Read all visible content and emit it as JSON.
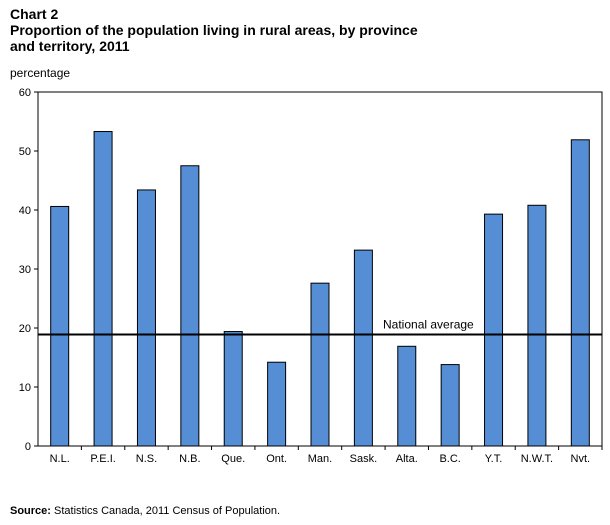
{
  "header": {
    "chart_number": "Chart 2",
    "title_line1": "Proportion of the population living in rural areas, by province",
    "title_line2": "and territory, 2011"
  },
  "footer": {
    "source_label": "Source:",
    "source_text": " Statistics Canada, 2011 Census of Population."
  },
  "colors": {
    "bar": "#558ED5",
    "bar_stroke": "#000000",
    "reference_line": "#000000"
  },
  "chart_data": {
    "type": "bar",
    "title": "Proportion of the population living in rural areas, by province and territory, 2011",
    "ylabel": "percentage",
    "ylim": [
      0,
      60
    ],
    "yticks": [
      0,
      10,
      20,
      30,
      40,
      50,
      60
    ],
    "grid": false,
    "categories": [
      "N.L.",
      "P.E.I.",
      "N.S.",
      "N.B.",
      "Que.",
      "Ont.",
      "Man.",
      "Sask.",
      "Alta.",
      "B.C.",
      "Y.T.",
      "N.W.T.",
      "Nvt."
    ],
    "values": [
      40.6,
      53.3,
      43.4,
      47.5,
      19.4,
      14.2,
      27.6,
      33.2,
      16.9,
      13.8,
      39.3,
      40.8,
      51.9
    ],
    "reference_line": {
      "label": "National average",
      "value": 18.9
    }
  }
}
